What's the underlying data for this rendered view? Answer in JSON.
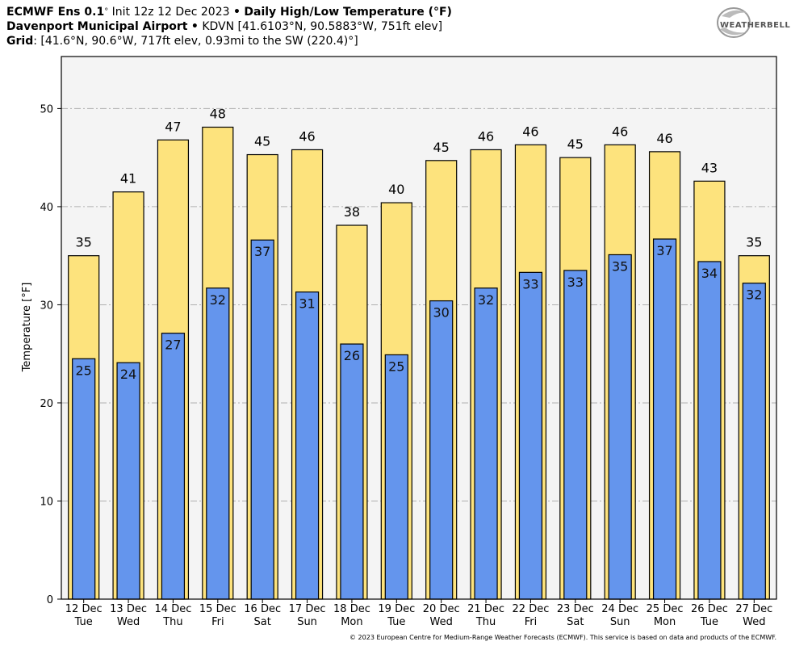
{
  "header": {
    "model_name": "ECMWF Ens 0.1",
    "degree": "°",
    "init": "Init 12z 12 Dec 2023",
    "bullet": "•",
    "product": "Daily High/Low Temperature (°F)",
    "station": "Davenport Municipal Airport",
    "station_info": "KDVN [41.6103°N, 90.5883°W, 751ft elev]",
    "grid_label": "Grid",
    "grid_info": ": [41.6°N, 90.6°W, 717ft elev, 0.93mi to the SW (220.4)°]"
  },
  "logo": {
    "text": "WEATHERBELL"
  },
  "copyright": "© 2023 European Centre for Medium-Range Weather Forecasts (ECMWF). This service is based on data and products of the ECMWF.",
  "colors": {
    "high_fill": "#fde37d",
    "low_fill": "#6495ed",
    "plot_bg": "#f4f4f4",
    "grid": "#b0b0b0"
  },
  "chart_data": {
    "type": "bar",
    "ylabel": "Temperature [°F]",
    "ylim": [
      0,
      50
    ],
    "yticks": [
      0,
      10,
      20,
      30,
      40,
      50
    ],
    "grid": true,
    "categories": [
      {
        "date": "12 Dec",
        "day": "Tue"
      },
      {
        "date": "13 Dec",
        "day": "Wed"
      },
      {
        "date": "14 Dec",
        "day": "Thu"
      },
      {
        "date": "15 Dec",
        "day": "Fri"
      },
      {
        "date": "16 Dec",
        "day": "Sat"
      },
      {
        "date": "17 Dec",
        "day": "Sun"
      },
      {
        "date": "18 Dec",
        "day": "Mon"
      },
      {
        "date": "19 Dec",
        "day": "Tue"
      },
      {
        "date": "20 Dec",
        "day": "Wed"
      },
      {
        "date": "21 Dec",
        "day": "Thu"
      },
      {
        "date": "22 Dec",
        "day": "Fri"
      },
      {
        "date": "23 Dec",
        "day": "Sat"
      },
      {
        "date": "24 Dec",
        "day": "Sun"
      },
      {
        "date": "25 Dec",
        "day": "Mon"
      },
      {
        "date": "26 Dec",
        "day": "Tue"
      },
      {
        "date": "27 Dec",
        "day": "Wed"
      }
    ],
    "series": [
      {
        "values": [
          35,
          41.5,
          46.8,
          48.1,
          45.3,
          45.8,
          38.1,
          40.4,
          44.7,
          45.8,
          46.3,
          45.0,
          46.3,
          45.6,
          42.6,
          35.0
        ],
        "labels": [
          "35",
          "41",
          "47",
          "48",
          "45",
          "46",
          "38",
          "40",
          "45",
          "46",
          "46",
          "45",
          "46",
          "46",
          "43",
          "35"
        ]
      },
      {
        "values": [
          24.5,
          24.1,
          27.1,
          31.7,
          36.6,
          31.3,
          26.0,
          24.9,
          30.4,
          31.7,
          33.3,
          33.5,
          35.1,
          36.7,
          34.4,
          32.2
        ],
        "labels": [
          "25",
          "24",
          "27",
          "32",
          "37",
          "31",
          "26",
          "25",
          "30",
          "32",
          "33",
          "33",
          "35",
          "37",
          "34",
          "32"
        ]
      }
    ]
  }
}
